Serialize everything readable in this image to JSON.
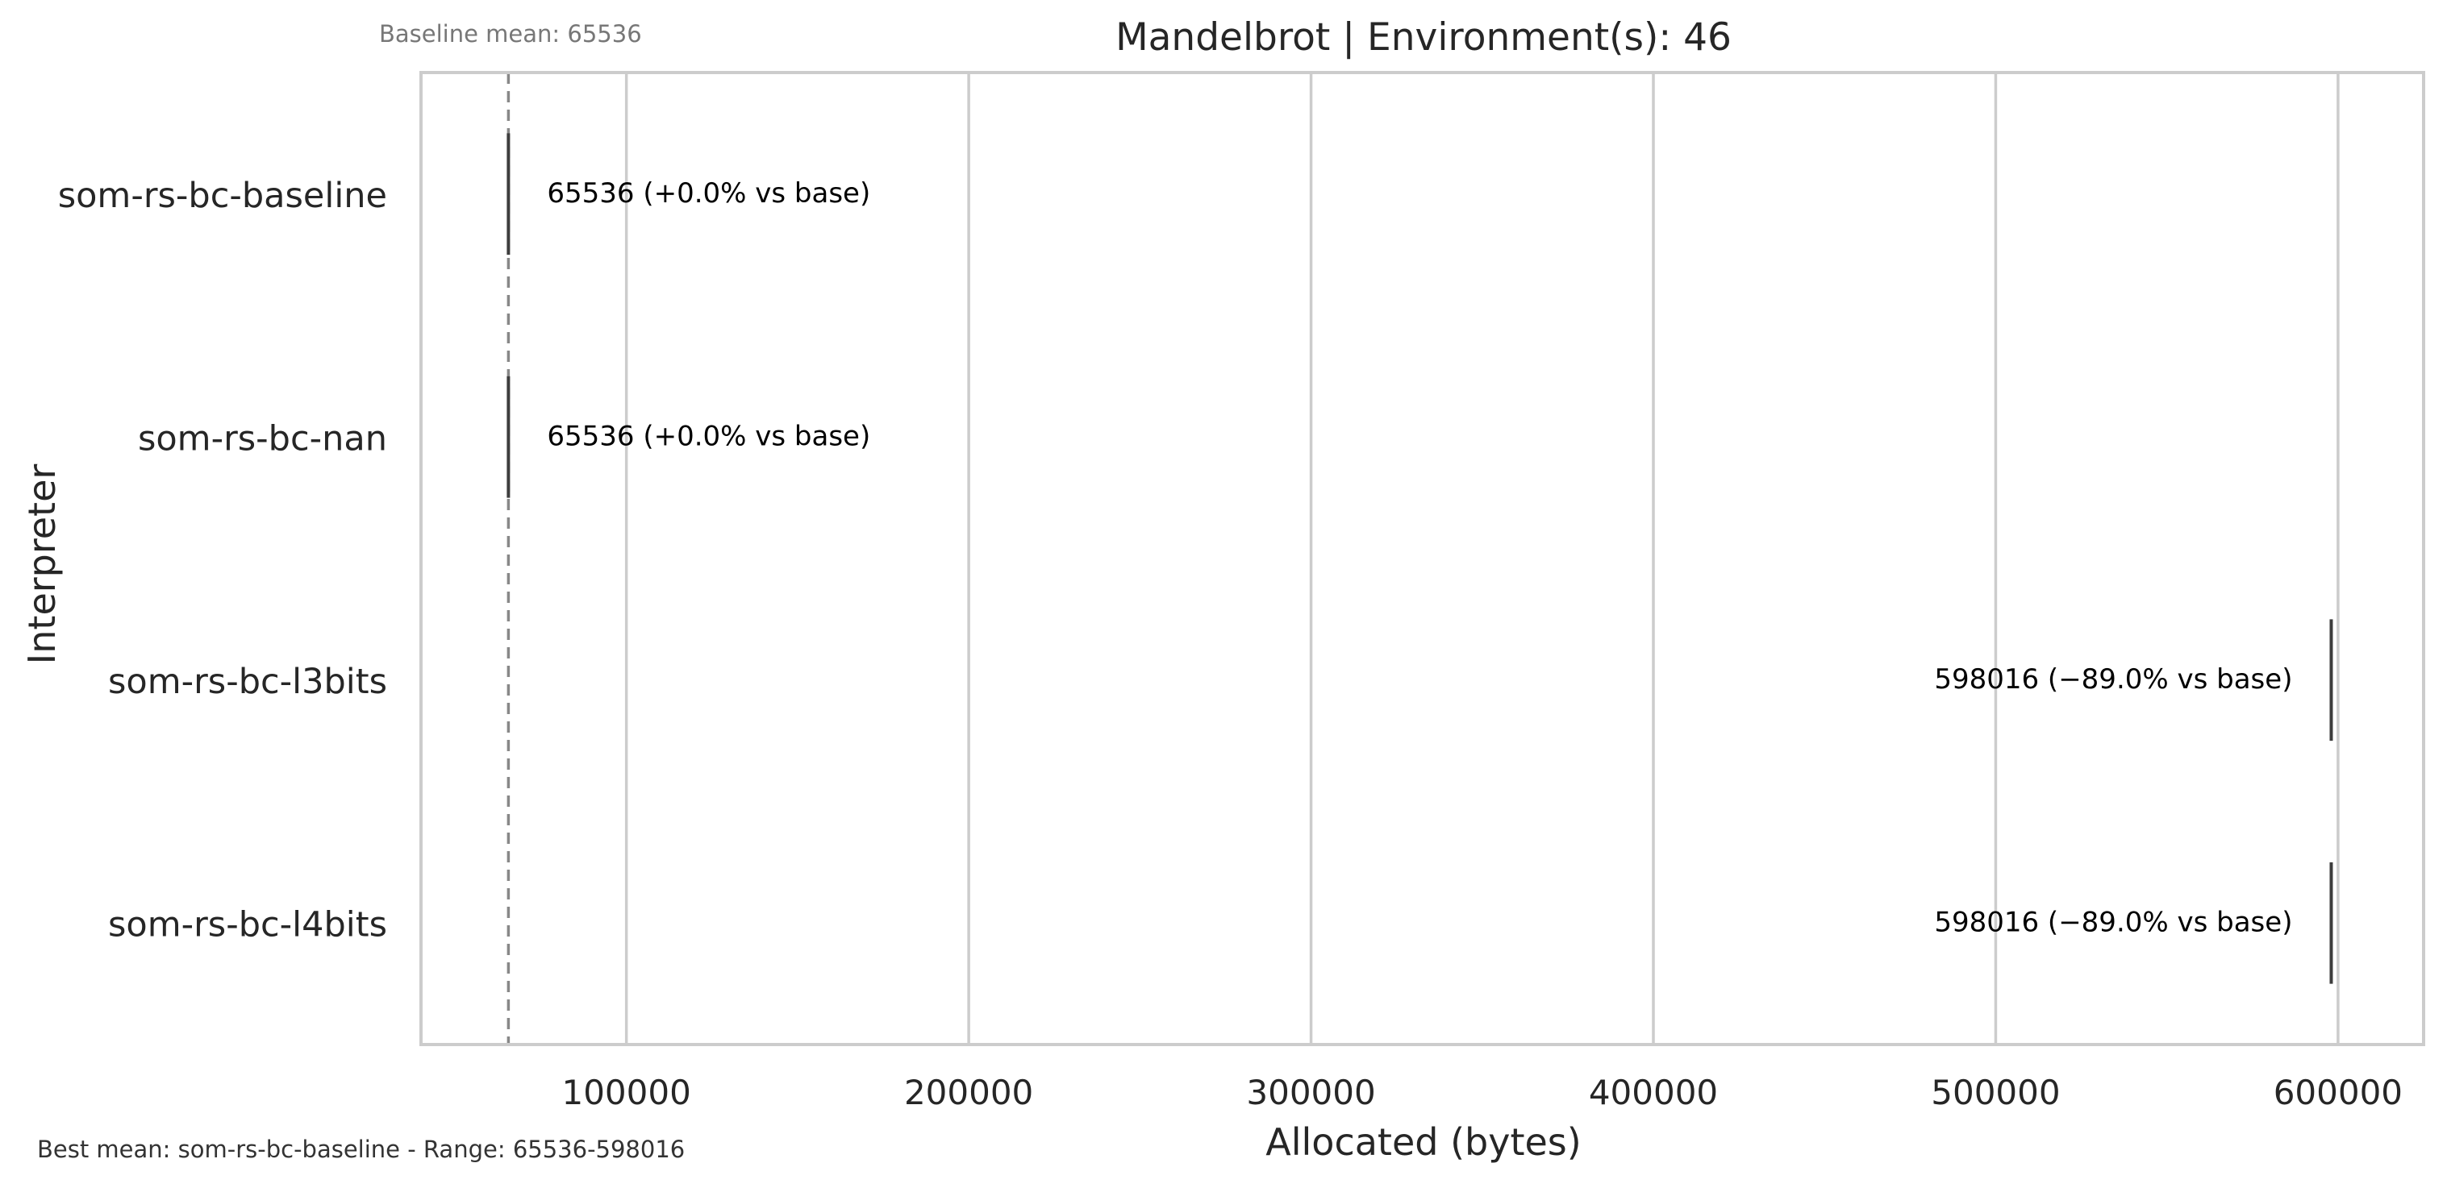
{
  "chart_data": {
    "type": "box",
    "title": "Mandelbrot | Environment(s): 46",
    "xlabel": "Allocated (bytes)",
    "ylabel": "Interpreter",
    "xlim": [
      40000,
      625000
    ],
    "x_ticks": [
      100000,
      200000,
      300000,
      400000,
      500000,
      600000
    ],
    "x_tick_labels": [
      "100000",
      "200000",
      "300000",
      "400000",
      "500000",
      "600000"
    ],
    "grid": "vertical",
    "categories": [
      "som-rs-bc-baseline",
      "som-rs-bc-nan",
      "som-rs-bc-l3bits",
      "som-rs-bc-l4bits"
    ],
    "values": [
      65536,
      65536,
      598016,
      598016
    ],
    "annotations": [
      "65536  (+0.0% vs base)",
      "65536  (+0.0% vs base)",
      "598016  (−89.0% vs base)",
      "598016  (−89.0% vs base)"
    ],
    "baseline": {
      "value": 65536,
      "label": "Baseline mean: 65536",
      "style": "dashed"
    },
    "footer": "Best mean: som-rs-bc-baseline - Range: 65536-598016"
  },
  "colors": {
    "axis_frame": "#cccccc",
    "grid": "#cccccc",
    "box_line": "#3d3d3d",
    "baseline_line": "#888888",
    "title_text": "#262626",
    "annotation_text": "#000000",
    "baseline_label_text": "#777777",
    "footer_text": "#333333"
  }
}
